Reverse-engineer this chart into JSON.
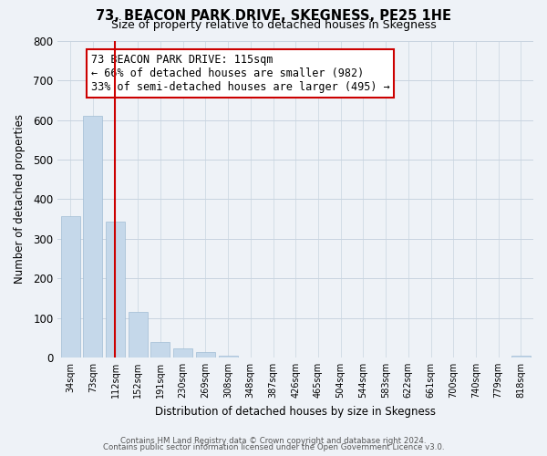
{
  "title": "73, BEACON PARK DRIVE, SKEGNESS, PE25 1HE",
  "subtitle": "Size of property relative to detached houses in Skegness",
  "xlabel": "Distribution of detached houses by size in Skegness",
  "ylabel": "Number of detached properties",
  "bar_labels": [
    "34sqm",
    "73sqm",
    "112sqm",
    "152sqm",
    "191sqm",
    "230sqm",
    "269sqm",
    "308sqm",
    "348sqm",
    "387sqm",
    "426sqm",
    "465sqm",
    "504sqm",
    "544sqm",
    "583sqm",
    "622sqm",
    "661sqm",
    "700sqm",
    "740sqm",
    "779sqm",
    "818sqm"
  ],
  "bar_values": [
    358,
    611,
    343,
    114,
    40,
    22,
    13,
    5,
    0,
    0,
    0,
    0,
    0,
    0,
    0,
    0,
    0,
    0,
    0,
    0,
    4
  ],
  "bar_color": "#c5d8ea",
  "bar_edge_color": "#a0bcd4",
  "vline_x": 2.0,
  "vline_color": "#cc0000",
  "ylim": [
    0,
    800
  ],
  "yticks": [
    0,
    100,
    200,
    300,
    400,
    500,
    600,
    700,
    800
  ],
  "grid_color": "#c8d4e0",
  "annotation_title": "73 BEACON PARK DRIVE: 115sqm",
  "annotation_line1": "← 66% of detached houses are smaller (982)",
  "annotation_line2": "33% of semi-detached houses are larger (495) →",
  "annotation_box_edge": "#cc0000",
  "footer1": "Contains HM Land Registry data © Crown copyright and database right 2024.",
  "footer2": "Contains public sector information licensed under the Open Government Licence v3.0.",
  "background_color": "#eef2f7",
  "plot_bg_color": "#eef2f7"
}
